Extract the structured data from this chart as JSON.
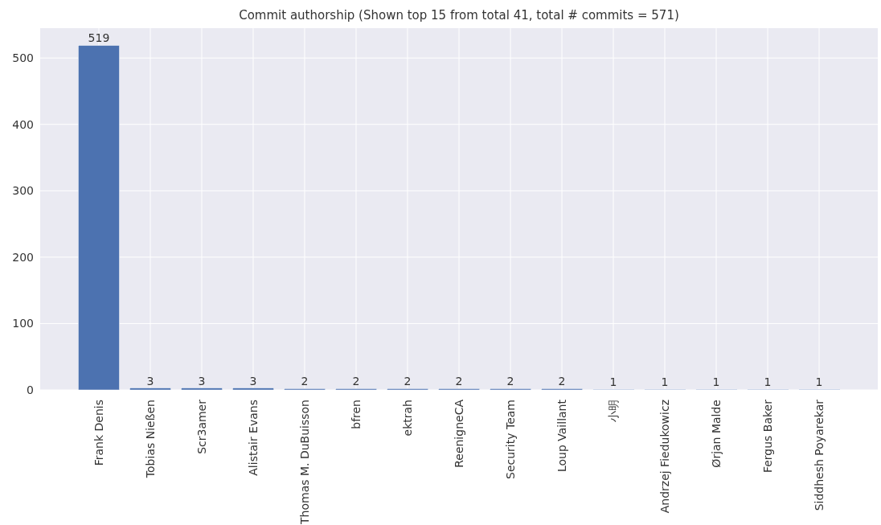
{
  "chart_data": {
    "type": "bar",
    "title": "Commit authorship (Shown top 15 from total 41, total # commits = 571)",
    "categories": [
      "Frank Denis",
      "Tobias Nießen",
      "Scr3amer",
      "Alistair Evans",
      "Thomas M. DuBuisson",
      "bfren",
      "ektrah",
      "ReenigneCA",
      "Security Team",
      "Loup Vaillant",
      "小明",
      "Andrzej Fiedukowicz",
      "Ørjan Malde",
      "Fergus Baker",
      "Siddhesh Poyarekar"
    ],
    "values": [
      519,
      3,
      3,
      3,
      2,
      2,
      2,
      2,
      2,
      2,
      1,
      1,
      1,
      1,
      1
    ],
    "color": "#4c72b0",
    "ylim": [
      0,
      545
    ],
    "yticks": [
      0,
      100,
      200,
      300,
      400,
      500
    ],
    "grid": true,
    "data_labels": true
  }
}
